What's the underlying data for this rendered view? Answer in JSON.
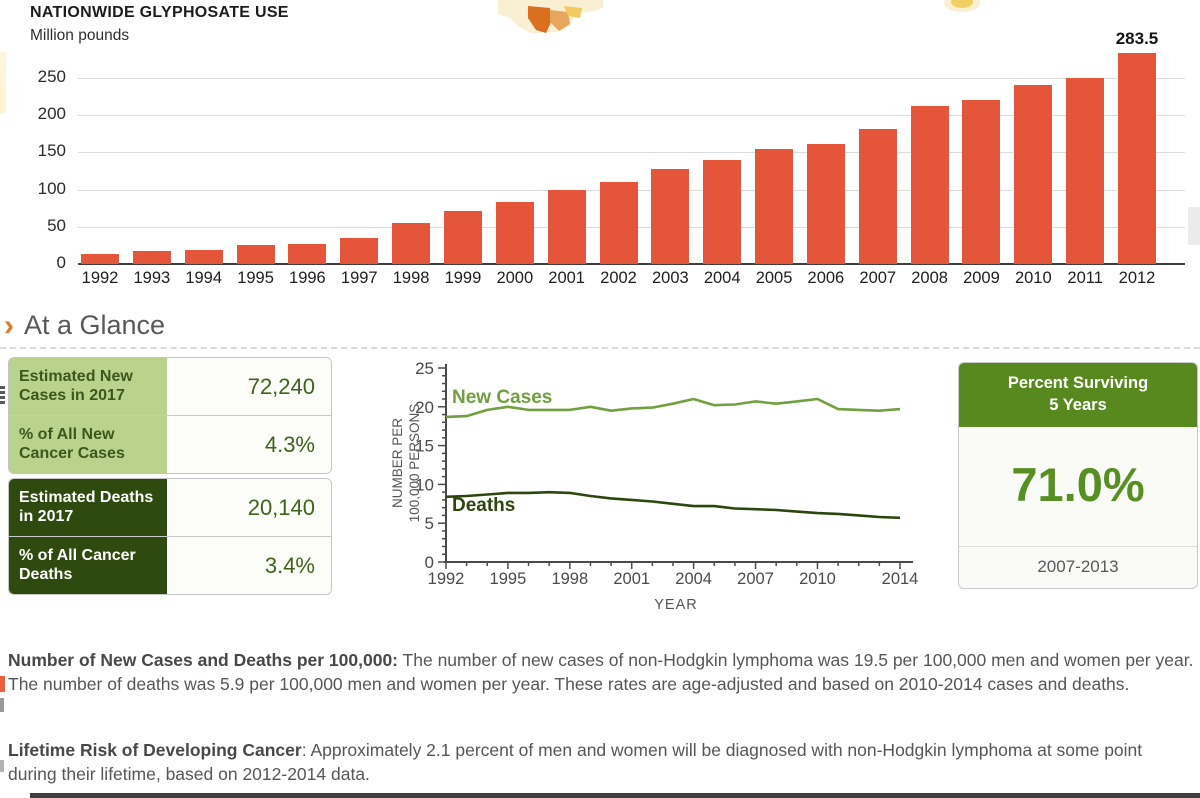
{
  "chart_data": [
    {
      "type": "bar",
      "title": "NATIONWIDE GLYPHOSATE USE",
      "ylabel": "Million pounds",
      "categories": [
        "1992",
        "1993",
        "1994",
        "1995",
        "1996",
        "1997",
        "1998",
        "1999",
        "2000",
        "2001",
        "2002",
        "2003",
        "2004",
        "2005",
        "2006",
        "2007",
        "2008",
        "2009",
        "2010",
        "2011",
        "2012"
      ],
      "values": [
        13,
        17,
        19,
        26,
        27,
        35,
        55,
        71,
        84,
        99,
        110,
        128,
        140,
        155,
        161,
        181,
        213,
        220,
        241,
        250,
        283.5
      ],
      "y_ticks": [
        0,
        50,
        100,
        150,
        200,
        250
      ],
      "ylim": [
        0,
        290
      ],
      "grid": true,
      "bar_color": "#e4553a",
      "annotation": "283.5"
    },
    {
      "type": "line",
      "xlabel": "YEAR",
      "ylabel_line1": "NUMBER PER",
      "ylabel_line2": "100,000 PERSONS",
      "x": [
        1992,
        1993,
        1994,
        1995,
        1996,
        1997,
        1998,
        1999,
        2000,
        2001,
        2002,
        2003,
        2004,
        2005,
        2006,
        2007,
        2008,
        2009,
        2010,
        2011,
        2012,
        2013,
        2014
      ],
      "x_tick_labels": [
        1992,
        1995,
        1998,
        2001,
        2004,
        2007,
        2010,
        2014
      ],
      "y_ticks": [
        0,
        5,
        10,
        15,
        20,
        25
      ],
      "ylim": [
        0,
        25
      ],
      "grid": false,
      "series": [
        {
          "name": "New Cases",
          "color": "#729f3f",
          "values": [
            18.7,
            18.8,
            19.6,
            20.0,
            19.6,
            19.6,
            19.6,
            20.0,
            19.5,
            19.8,
            19.9,
            20.4,
            21.0,
            20.2,
            20.3,
            20.7,
            20.4,
            20.7,
            21.0,
            19.7,
            19.6,
            19.5,
            19.7
          ]
        },
        {
          "name": "Deaths",
          "color": "#2c470e",
          "values": [
            8.4,
            8.5,
            8.7,
            8.9,
            8.9,
            9.0,
            8.9,
            8.5,
            8.2,
            8.0,
            7.8,
            7.5,
            7.2,
            7.2,
            6.9,
            6.8,
            6.7,
            6.5,
            6.3,
            6.2,
            6.0,
            5.8,
            5.7
          ]
        }
      ]
    }
  ],
  "glance": {
    "heading": "At a Glance",
    "cards": [
      {
        "label": "Estimated New Cases in 2017",
        "value": "72,240",
        "theme": "light"
      },
      {
        "label": "% of All New Cancer Cases",
        "value": "4.3%",
        "theme": "light"
      },
      {
        "label": "Estimated Deaths in 2017",
        "value": "20,140",
        "theme": "dark"
      },
      {
        "label": "% of All Cancer Deaths",
        "value": "3.4%",
        "theme": "dark"
      }
    ],
    "survival": {
      "header_line1": "Percent Surviving",
      "header_line2": "5 Years",
      "value": "71.0%",
      "period": "2007-2013"
    }
  },
  "paragraphs": [
    {
      "lead": "Number of New Cases and Deaths per 100,000:",
      "body": " The number of new cases of non-Hodgkin lymphoma was 19.5 per 100,000 men and women per year. The number of deaths was 5.9 per 100,000 men and women per year. These rates are age-adjusted and based on 2010-2014 cases and deaths."
    },
    {
      "lead": "Lifetime Risk of Developing Cancer",
      "body": ": Approximately 2.1 percent of men and women will be diagnosed with non-Hodgkin lymphoma at some point during their lifetime, based on 2012-2014 data."
    }
  ],
  "colors": {
    "bar_orange": "#e4553a",
    "light_green": "#b9d28c",
    "dark_green": "#2f4a0e",
    "value_green": "#3f621d",
    "survival_green": "#57891f",
    "accent_orange": "#e87722"
  }
}
